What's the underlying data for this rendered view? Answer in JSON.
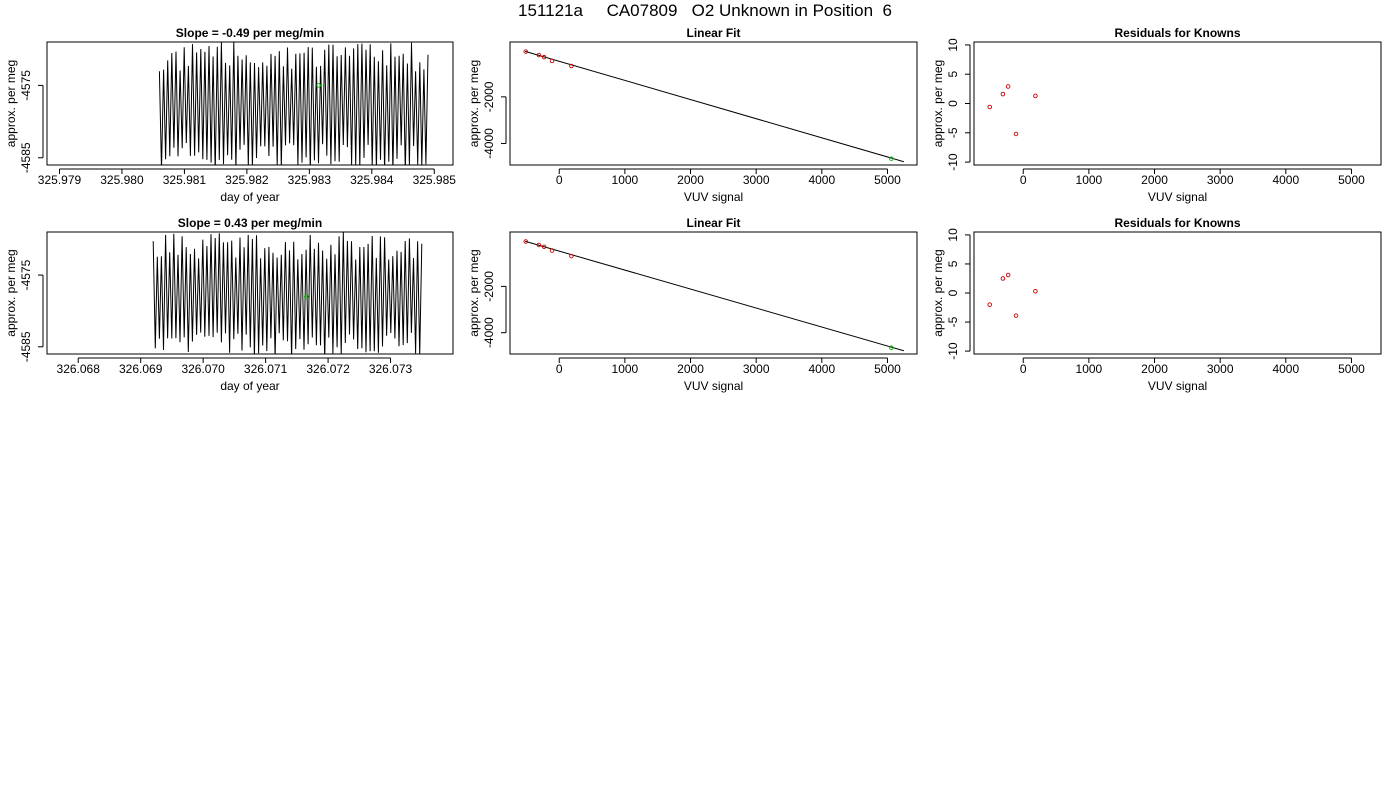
{
  "page": {
    "title": "151121a     CA07809   O2 Unknown in Position  6"
  },
  "colors": {
    "line": "#000000",
    "known_points": "#cc0000",
    "unknown_point": "#00bb00"
  },
  "chart_data": [
    {
      "type": "line",
      "title": "Slope =  -0.49  per meg/min",
      "xlabel": "day of year",
      "ylabel": "approx. per meg",
      "xlim": [
        325.9788,
        325.9853
      ],
      "ylim": [
        -4586.0,
        -4569.0
      ],
      "xticks": [
        325.979,
        325.98,
        325.981,
        325.982,
        325.983,
        325.984,
        325.985
      ],
      "xtick_labels": [
        "325.979",
        "325.980",
        "325.981",
        "325.982",
        "325.983",
        "325.984",
        "325.985"
      ],
      "yticks": [
        -4575,
        -4585
      ],
      "ytick_labels": [
        "-4575",
        "-4585"
      ],
      "series": [
        {
          "style": "line",
          "color": "#000000",
          "x_start": 325.9806,
          "x_end": 325.9849,
          "segments": 130,
          "y_range": [
            -4587.0,
            -4569.0
          ]
        },
        {
          "style": "point",
          "color": "#00bb00",
          "x": [
            325.98315
          ],
          "y": [
            -4575.0
          ]
        }
      ]
    },
    {
      "type": "scatter",
      "title": "Linear Fit",
      "xlabel": "VUV signal",
      "ylabel": "approx. per meg",
      "xlim": [
        -750,
        5450
      ],
      "ylim": [
        -4920,
        350
      ],
      "xticks": [
        0,
        1000,
        2000,
        3000,
        4000,
        5000
      ],
      "xtick_labels": [
        "0",
        "1000",
        "2000",
        "3000",
        "4000",
        "5000"
      ],
      "yticks": [
        -2000,
        -4000
      ],
      "ytick_labels": [
        "-2000",
        "-4000"
      ],
      "series": [
        {
          "style": "line",
          "color": "#000000",
          "x": [
            -520,
            5250
          ],
          "y": [
            -50,
            -4780
          ]
        },
        {
          "style": "point",
          "color": "#cc0000",
          "x": [
            -510,
            -310,
            -230,
            -110,
            185
          ],
          "y": [
            -60,
            -210,
            -300,
            -460,
            -680
          ]
        },
        {
          "style": "point",
          "color": "#00bb00",
          "x": [
            5060
          ],
          "y": [
            -4650
          ]
        }
      ]
    },
    {
      "type": "scatter",
      "title": "Residuals for Knowns",
      "xlabel": "VUV signal",
      "ylabel": "approx. per meg",
      "xlim": [
        -750,
        5450
      ],
      "ylim": [
        -10.5,
        10.5
      ],
      "xticks": [
        0,
        1000,
        2000,
        3000,
        4000,
        5000
      ],
      "xtick_labels": [
        "0",
        "1000",
        "2000",
        "3000",
        "4000",
        "5000"
      ],
      "yticks": [
        10,
        5,
        0,
        -5,
        -10
      ],
      "ytick_labels": [
        "10",
        "5",
        "0",
        "-5",
        "-10"
      ],
      "series": [
        {
          "style": "point",
          "color": "#cc0000",
          "x": [
            -510,
            -310,
            -230,
            -110,
            185
          ],
          "y": [
            -0.6,
            1.6,
            2.9,
            -5.2,
            1.3
          ]
        }
      ]
    },
    {
      "type": "line",
      "title": "Slope =  0.43  per meg/min",
      "xlabel": "day of year",
      "ylabel": "approx. per meg",
      "xlim": [
        326.0675,
        326.074
      ],
      "ylim": [
        -4586.0,
        -4569.0
      ],
      "xticks": [
        326.068,
        326.069,
        326.07,
        326.071,
        326.072,
        326.073
      ],
      "xtick_labels": [
        "326.068",
        "326.069",
        "326.070",
        "326.071",
        "326.072",
        "326.073"
      ],
      "yticks": [
        -4575,
        -4585
      ],
      "ytick_labels": [
        "-4575",
        "-4585"
      ],
      "series": [
        {
          "style": "line",
          "color": "#000000",
          "x_start": 326.0692,
          "x_end": 326.0735,
          "segments": 130,
          "y_range": [
            -4587.0,
            -4569.0
          ]
        },
        {
          "style": "point",
          "color": "#00bb00",
          "x": [
            326.07165
          ],
          "y": [
            -4578.0
          ]
        }
      ]
    },
    {
      "type": "scatter",
      "title": "Linear Fit",
      "xlabel": "VUV signal",
      "ylabel": "approx. per meg",
      "xlim": [
        -750,
        5450
      ],
      "ylim": [
        -4920,
        350
      ],
      "xticks": [
        0,
        1000,
        2000,
        3000,
        4000,
        5000
      ],
      "xtick_labels": [
        "0",
        "1000",
        "2000",
        "3000",
        "4000",
        "5000"
      ],
      "yticks": [
        -2000,
        -4000
      ],
      "ytick_labels": [
        "-2000",
        "-4000"
      ],
      "series": [
        {
          "style": "line",
          "color": "#000000",
          "x": [
            -520,
            5250
          ],
          "y": [
            -50,
            -4780
          ]
        },
        {
          "style": "point",
          "color": "#cc0000",
          "x": [
            -510,
            -310,
            -230,
            -110,
            185
          ],
          "y": [
            -60,
            -210,
            -290,
            -450,
            -690
          ]
        },
        {
          "style": "point",
          "color": "#00bb00",
          "x": [
            5060
          ],
          "y": [
            -4650
          ]
        }
      ]
    },
    {
      "type": "scatter",
      "title": "Residuals for Knowns",
      "xlabel": "VUV signal",
      "ylabel": "approx. per meg",
      "xlim": [
        -750,
        5450
      ],
      "ylim": [
        -10.5,
        10.5
      ],
      "xticks": [
        0,
        1000,
        2000,
        3000,
        4000,
        5000
      ],
      "xtick_labels": [
        "0",
        "1000",
        "2000",
        "3000",
        "4000",
        "5000"
      ],
      "yticks": [
        10,
        5,
        0,
        -5,
        -10
      ],
      "ytick_labels": [
        "10",
        "5",
        "0",
        "-5",
        "-10"
      ],
      "series": [
        {
          "style": "point",
          "color": "#cc0000",
          "x": [
            -510,
            -310,
            -230,
            -110,
            185
          ],
          "y": [
            -2.0,
            2.5,
            3.1,
            -3.9,
            0.3
          ]
        }
      ]
    }
  ]
}
